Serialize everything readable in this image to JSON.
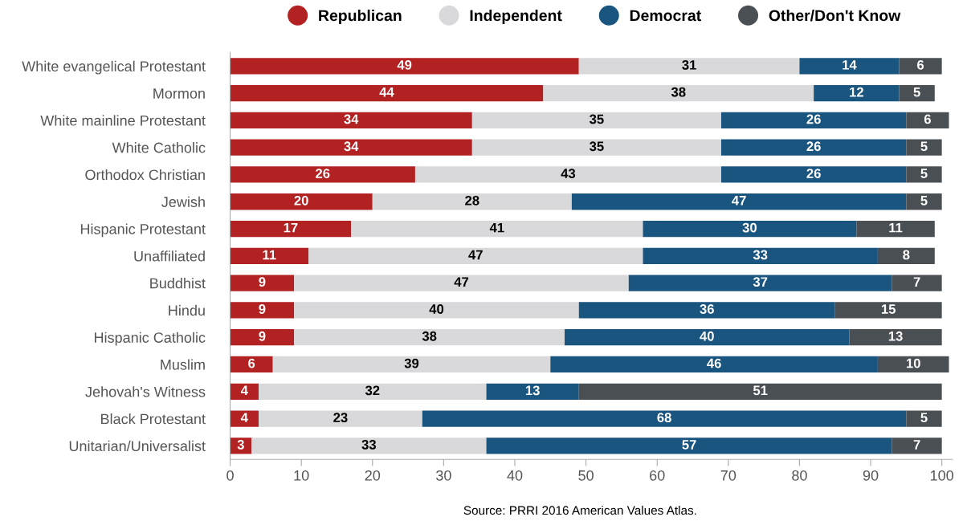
{
  "chart_data": {
    "type": "bar",
    "orientation": "horizontal",
    "stacked": true,
    "data_labels": true,
    "legend": "top",
    "grid": false,
    "marker": "circle",
    "categories": [
      "White evangelical Protestant",
      "Mormon",
      "White mainline Protestant",
      "White Catholic",
      "Orthodox Christian",
      "Jewish",
      "Hispanic Protestant",
      "Unaffiliated",
      "Buddhist",
      "Hindu",
      "Hispanic Catholic",
      "Muslim",
      "Jehovah's Witness",
      "Black Protestant",
      "Unitarian/Universalist"
    ],
    "series": [
      {
        "name": "Republican",
        "color": "#b22222",
        "values": [
          49,
          44,
          34,
          34,
          26,
          20,
          17,
          11,
          9,
          9,
          9,
          6,
          4,
          4,
          3
        ]
      },
      {
        "name": "Independent",
        "color": "#d9d9db",
        "values": [
          31,
          38,
          35,
          35,
          43,
          28,
          41,
          47,
          47,
          40,
          38,
          39,
          32,
          23,
          33
        ]
      },
      {
        "name": "Democrat",
        "color": "#1a5580",
        "values": [
          14,
          12,
          26,
          26,
          26,
          47,
          30,
          33,
          37,
          36,
          40,
          46,
          13,
          68,
          57
        ]
      },
      {
        "name": "Other/Don't Know",
        "color": "#4a4f54",
        "values": [
          6,
          5,
          6,
          5,
          5,
          5,
          11,
          8,
          7,
          15,
          13,
          10,
          51,
          5,
          7
        ]
      }
    ],
    "xlim": [
      0,
      101.5
    ],
    "xticks": [
      0,
      10,
      20,
      30,
      40,
      50,
      60,
      70,
      80,
      90,
      100
    ],
    "annotations": [
      "Source: PRRI 2016 American Values Atlas."
    ]
  }
}
